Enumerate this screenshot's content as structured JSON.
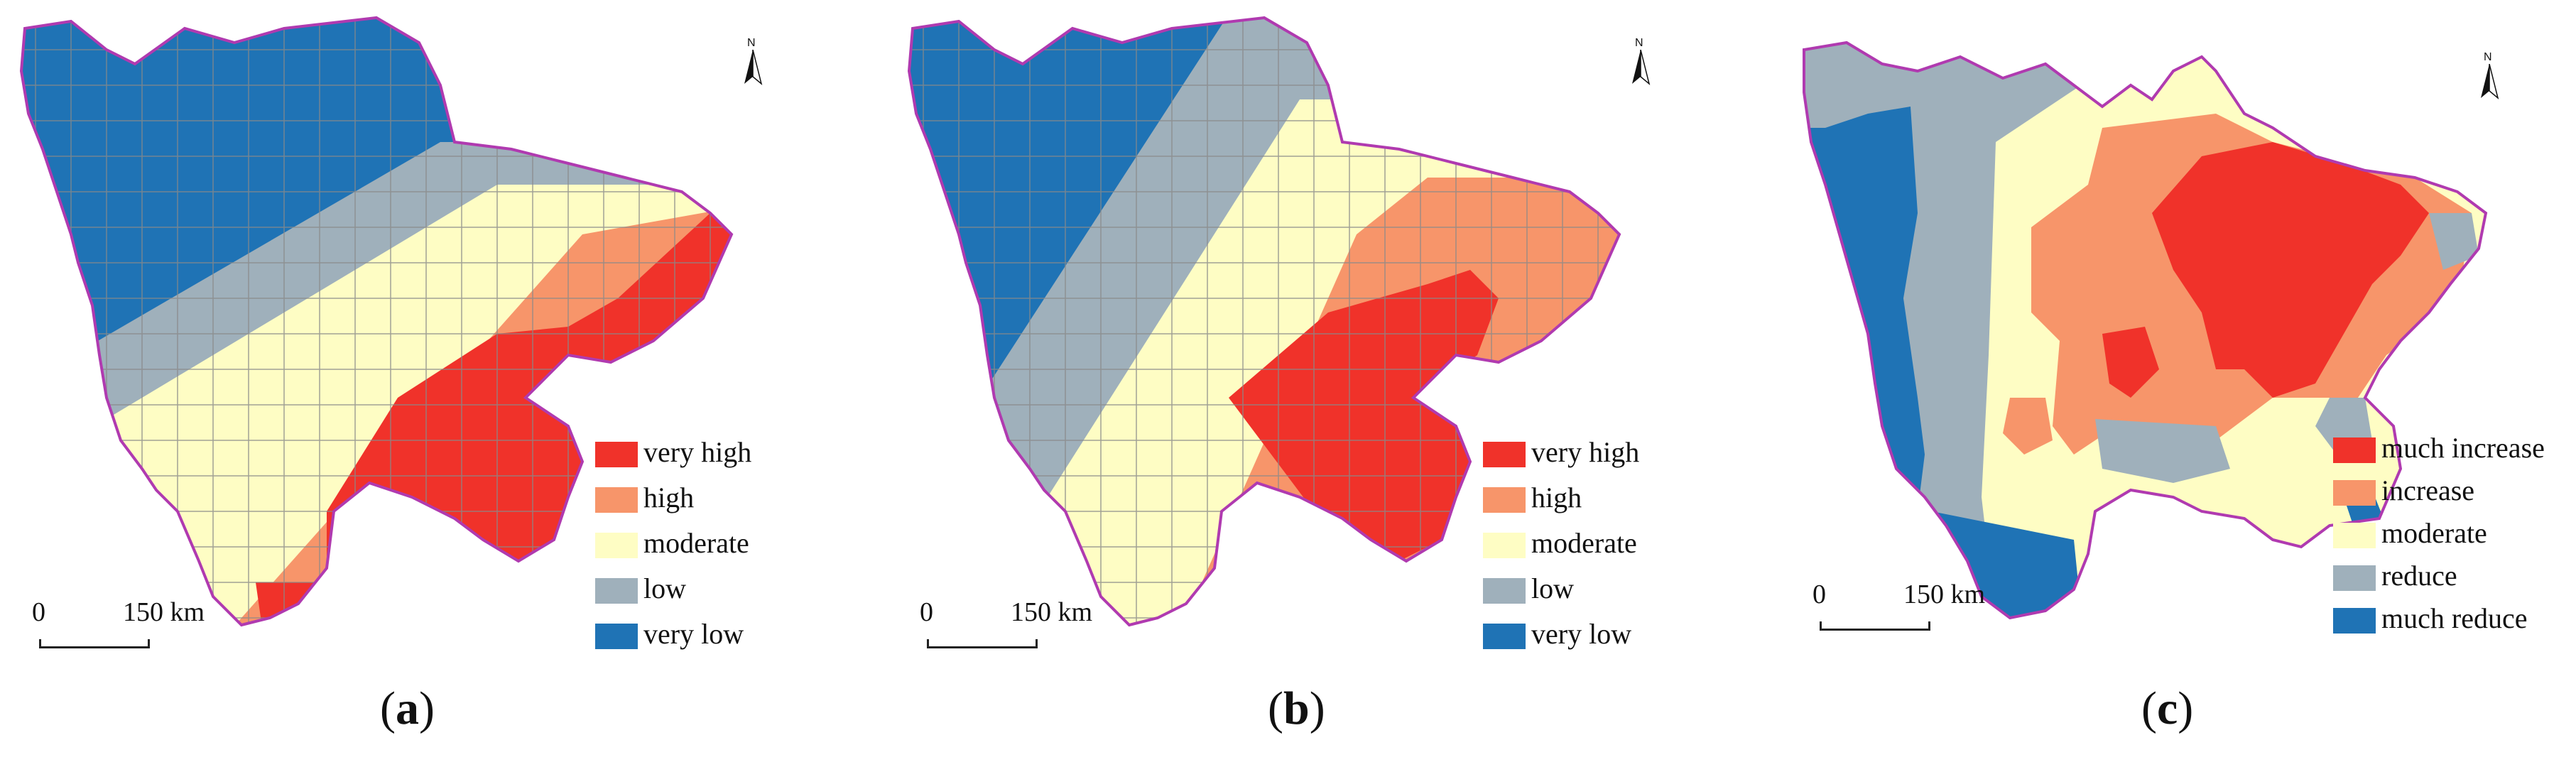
{
  "panels": [
    {
      "id": "a",
      "caption_letter": "a",
      "legend": [
        {
          "label": "very high",
          "color": "#f0322a"
        },
        {
          "label": "high",
          "color": "#f7956a"
        },
        {
          "label": "moderate",
          "color": "#fefdc4"
        },
        {
          "label": "low",
          "color": "#9fb0bb"
        },
        {
          "label": "very low",
          "color": "#1f73b5"
        }
      ],
      "scale": {
        "zero": "0",
        "end": "150 km"
      },
      "north_label": "N"
    },
    {
      "id": "b",
      "caption_letter": "b",
      "legend": [
        {
          "label": "very high",
          "color": "#f0322a"
        },
        {
          "label": "high",
          "color": "#f7956a"
        },
        {
          "label": "moderate",
          "color": "#fefdc4"
        },
        {
          "label": "low",
          "color": "#9fb0bb"
        },
        {
          "label": "very low",
          "color": "#1f73b5"
        }
      ],
      "scale": {
        "zero": "0",
        "end": "150 km"
      },
      "north_label": "N"
    },
    {
      "id": "c",
      "caption_letter": "c",
      "legend": [
        {
          "label": "much increase",
          "color": "#f0322a"
        },
        {
          "label": "increase",
          "color": "#f7956a"
        },
        {
          "label": "moderate",
          "color": "#fefdc4"
        },
        {
          "label": "reduce",
          "color": "#9fb0bb"
        },
        {
          "label": "much reduce",
          "color": "#1f73b5"
        }
      ],
      "scale": {
        "zero": "0",
        "end": "150 km"
      },
      "north_label": "N"
    }
  ],
  "colors": {
    "boundary": "#b03ab0",
    "grid": "#8a8a8a"
  }
}
